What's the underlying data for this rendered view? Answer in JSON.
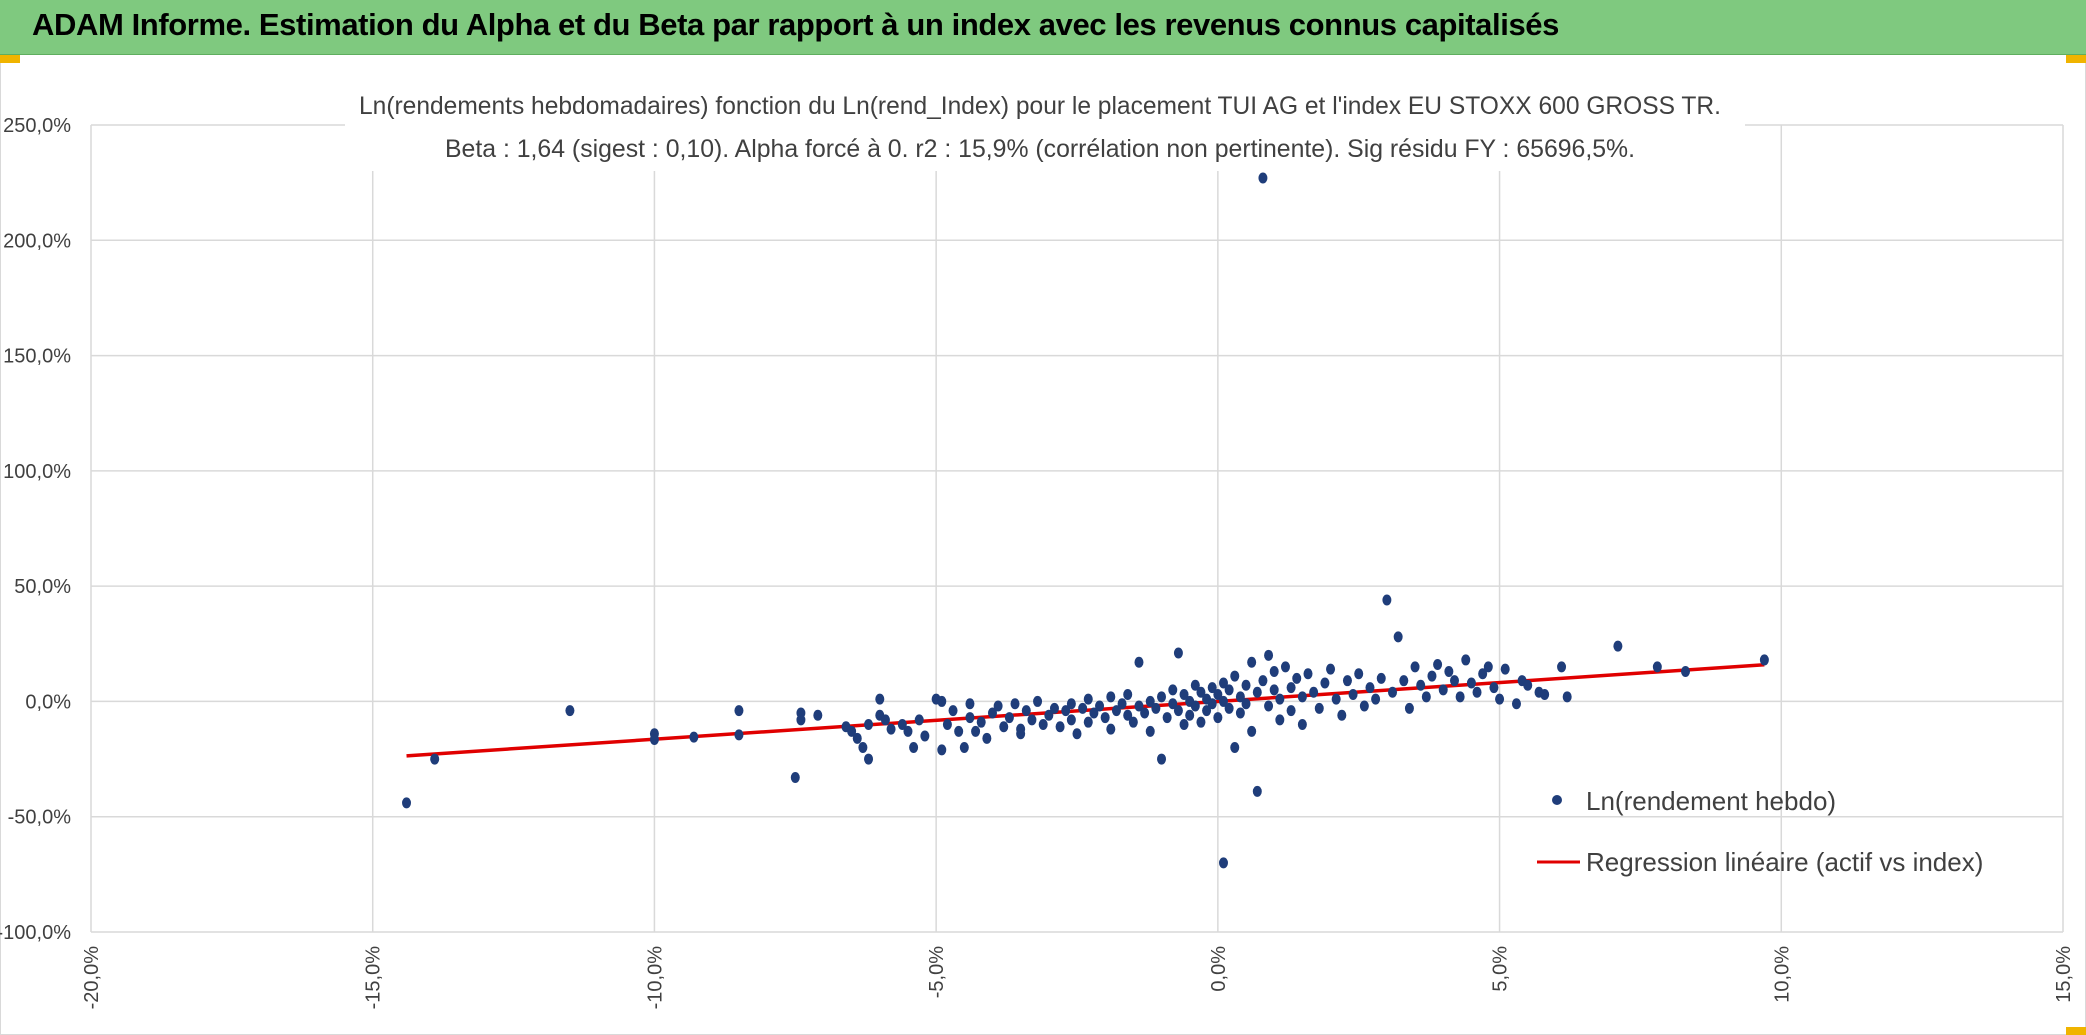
{
  "header": {
    "title": "ADAM Informe. Estimation du Alpha et du Beta par rapport à un index avec les revenus connus capitalisés"
  },
  "colors": {
    "header_bg": "#7fc97f",
    "points": "#1f3d7a",
    "regression": "#e00000",
    "grid": "#d9d9d9",
    "accent_corner": "#f0b400"
  },
  "chart_data": {
    "type": "scatter",
    "title": "Ln(rendements hebdomadaires) fonction du Ln(rend_Index) pour le placement TUI AG et l'index EU STOXX 600 GROSS TR.",
    "subtitle": "Beta : 1,64 (sigest : 0,10). Alpha forcé à 0. r2 : 15,9% (corrélation non pertinente). Sig résidu FY : 65696,5%.",
    "xlabel": "",
    "ylabel": "",
    "xlim": [
      -20,
      15
    ],
    "ylim": [
      -100,
      250
    ],
    "x_ticks": [
      -20,
      -15,
      -10,
      -5,
      0,
      5,
      10,
      15
    ],
    "y_ticks": [
      -100,
      -50,
      0,
      50,
      100,
      150,
      200,
      250
    ],
    "x_tick_labels": [
      "-20,0%",
      "-15,0%",
      "-10,0%",
      "-5,0%",
      "0,0%",
      "5,0%",
      "10,0%",
      "15,0%"
    ],
    "y_tick_labels": [
      "-100,0%",
      "-50,0%",
      "0,0%",
      "50,0%",
      "100,0%",
      "150,0%",
      "200,0%",
      "250,0%"
    ],
    "grid": true,
    "legend_position": "bottom-right",
    "series": [
      {
        "name": "Ln(rendement hebdo)",
        "kind": "scatter",
        "points": [
          [
            -14.4,
            -44
          ],
          [
            -13.9,
            -25
          ],
          [
            -11.5,
            -4
          ],
          [
            -10,
            -14
          ],
          [
            -10,
            -16.5
          ],
          [
            -9.3,
            -15.5
          ],
          [
            -8.5,
            -4
          ],
          [
            -8.5,
            -14.5
          ],
          [
            -7.5,
            -33
          ],
          [
            -7.4,
            -5
          ],
          [
            -7.4,
            -8
          ],
          [
            -7.1,
            -6
          ],
          [
            -6.6,
            -11
          ],
          [
            -6.5,
            -13
          ],
          [
            -6.4,
            -16
          ],
          [
            -6.3,
            -20
          ],
          [
            -6.2,
            -25
          ],
          [
            -6.2,
            -10
          ],
          [
            -6,
            1
          ],
          [
            -6,
            -6
          ],
          [
            -5.9,
            -8
          ],
          [
            -5.8,
            -12
          ],
          [
            -5.6,
            -10
          ],
          [
            -5.5,
            -13
          ],
          [
            -5.4,
            -20
          ],
          [
            -5.3,
            -8
          ],
          [
            -5.2,
            -15
          ],
          [
            -5,
            1
          ],
          [
            -4.9,
            0
          ],
          [
            -4.9,
            -21
          ],
          [
            -4.8,
            -10
          ],
          [
            -4.7,
            -4
          ],
          [
            -4.6,
            -13
          ],
          [
            -4.5,
            -20
          ],
          [
            -4.4,
            -7
          ],
          [
            -4.4,
            -1
          ],
          [
            -4.3,
            -13
          ],
          [
            -4.2,
            -9
          ],
          [
            -4.1,
            -16
          ],
          [
            -4.0,
            -5
          ],
          [
            -3.9,
            -2
          ],
          [
            -3.8,
            -11
          ],
          [
            -3.7,
            -7
          ],
          [
            -3.6,
            -1
          ],
          [
            -3.5,
            -12
          ],
          [
            -3.5,
            -14
          ],
          [
            -3.4,
            -4
          ],
          [
            -3.3,
            -8
          ],
          [
            -3.2,
            0
          ],
          [
            -3.1,
            -10
          ],
          [
            -3.0,
            -6
          ],
          [
            -2.9,
            -3
          ],
          [
            -2.8,
            -11
          ],
          [
            -2.7,
            -4
          ],
          [
            -2.6,
            -1
          ],
          [
            -2.6,
            -8
          ],
          [
            -2.5,
            -14
          ],
          [
            -2.4,
            -3
          ],
          [
            -2.3,
            1
          ],
          [
            -2.3,
            -9
          ],
          [
            -2.2,
            -5
          ],
          [
            -2.1,
            -2
          ],
          [
            -2.0,
            -7
          ],
          [
            -1.9,
            2
          ],
          [
            -1.9,
            -12
          ],
          [
            -1.8,
            -4
          ],
          [
            -1.7,
            -1
          ],
          [
            -1.6,
            -6
          ],
          [
            -1.6,
            3
          ],
          [
            -1.5,
            -9
          ],
          [
            -1.4,
            17
          ],
          [
            -1.4,
            -2
          ],
          [
            -1.3,
            -5
          ],
          [
            -1.2,
            0
          ],
          [
            -1.2,
            -13
          ],
          [
            -1.1,
            -3
          ],
          [
            -1.0,
            2
          ],
          [
            -1.0,
            -25
          ],
          [
            -0.9,
            -7
          ],
          [
            -0.8,
            5
          ],
          [
            -0.8,
            -1
          ],
          [
            -0.7,
            21
          ],
          [
            -0.7,
            -4
          ],
          [
            -0.6,
            3
          ],
          [
            -0.6,
            -10
          ],
          [
            -0.5,
            0
          ],
          [
            -0.5,
            -6
          ],
          [
            -0.4,
            7
          ],
          [
            -0.4,
            -2
          ],
          [
            -0.3,
            4
          ],
          [
            -0.3,
            -9
          ],
          [
            -0.2,
            1
          ],
          [
            -0.2,
            -4
          ],
          [
            -0.1,
            6
          ],
          [
            -0.1,
            -1
          ],
          [
            0.0,
            3
          ],
          [
            0.0,
            -7
          ],
          [
            0.1,
            -70
          ],
          [
            0.1,
            8
          ],
          [
            0.1,
            0
          ],
          [
            0.2,
            -3
          ],
          [
            0.2,
            5
          ],
          [
            0.3,
            -20
          ],
          [
            0.3,
            11
          ],
          [
            0.4,
            2
          ],
          [
            0.4,
            -5
          ],
          [
            0.5,
            7
          ],
          [
            0.5,
            -1
          ],
          [
            0.6,
            17
          ],
          [
            0.6,
            -13
          ],
          [
            0.7,
            -39
          ],
          [
            0.7,
            4
          ],
          [
            0.8,
            227
          ],
          [
            0.8,
            9
          ],
          [
            0.9,
            20
          ],
          [
            0.9,
            -2
          ],
          [
            1.0,
            13
          ],
          [
            1.0,
            5
          ],
          [
            1.1,
            -8
          ],
          [
            1.1,
            1
          ],
          [
            1.2,
            15
          ],
          [
            1.3,
            6
          ],
          [
            1.3,
            -4
          ],
          [
            1.4,
            10
          ],
          [
            1.5,
            2
          ],
          [
            1.5,
            -10
          ],
          [
            1.6,
            12
          ],
          [
            1.7,
            4
          ],
          [
            1.8,
            -3
          ],
          [
            1.9,
            8
          ],
          [
            2.0,
            14
          ],
          [
            2.1,
            1
          ],
          [
            2.2,
            -6
          ],
          [
            2.3,
            9
          ],
          [
            2.4,
            3
          ],
          [
            2.5,
            12
          ],
          [
            2.6,
            -2
          ],
          [
            2.7,
            6
          ],
          [
            2.8,
            1
          ],
          [
            2.9,
            10
          ],
          [
            3.0,
            44
          ],
          [
            3.1,
            4
          ],
          [
            3.2,
            28
          ],
          [
            3.3,
            9
          ],
          [
            3.4,
            -3
          ],
          [
            3.5,
            15
          ],
          [
            3.6,
            7
          ],
          [
            3.7,
            2
          ],
          [
            3.8,
            11
          ],
          [
            3.9,
            16
          ],
          [
            4.0,
            5
          ],
          [
            4.1,
            13
          ],
          [
            4.2,
            9
          ],
          [
            4.3,
            2
          ],
          [
            4.4,
            18
          ],
          [
            4.5,
            8
          ],
          [
            4.6,
            4
          ],
          [
            4.7,
            12
          ],
          [
            4.8,
            15
          ],
          [
            4.9,
            6
          ],
          [
            5.0,
            1
          ],
          [
            5.1,
            14
          ],
          [
            5.3,
            -1
          ],
          [
            5.4,
            9
          ],
          [
            5.5,
            7
          ],
          [
            5.7,
            4
          ],
          [
            5.8,
            3
          ],
          [
            6.1,
            15
          ],
          [
            6.2,
            2
          ],
          [
            7.1,
            24
          ],
          [
            7.8,
            15
          ],
          [
            8.3,
            13
          ],
          [
            9.7,
            18
          ]
        ]
      },
      {
        "name": "Regression linéaire (actif vs index)",
        "kind": "line",
        "points": [
          [
            -14.4,
            -23.6
          ],
          [
            9.7,
            15.9
          ]
        ]
      }
    ]
  }
}
